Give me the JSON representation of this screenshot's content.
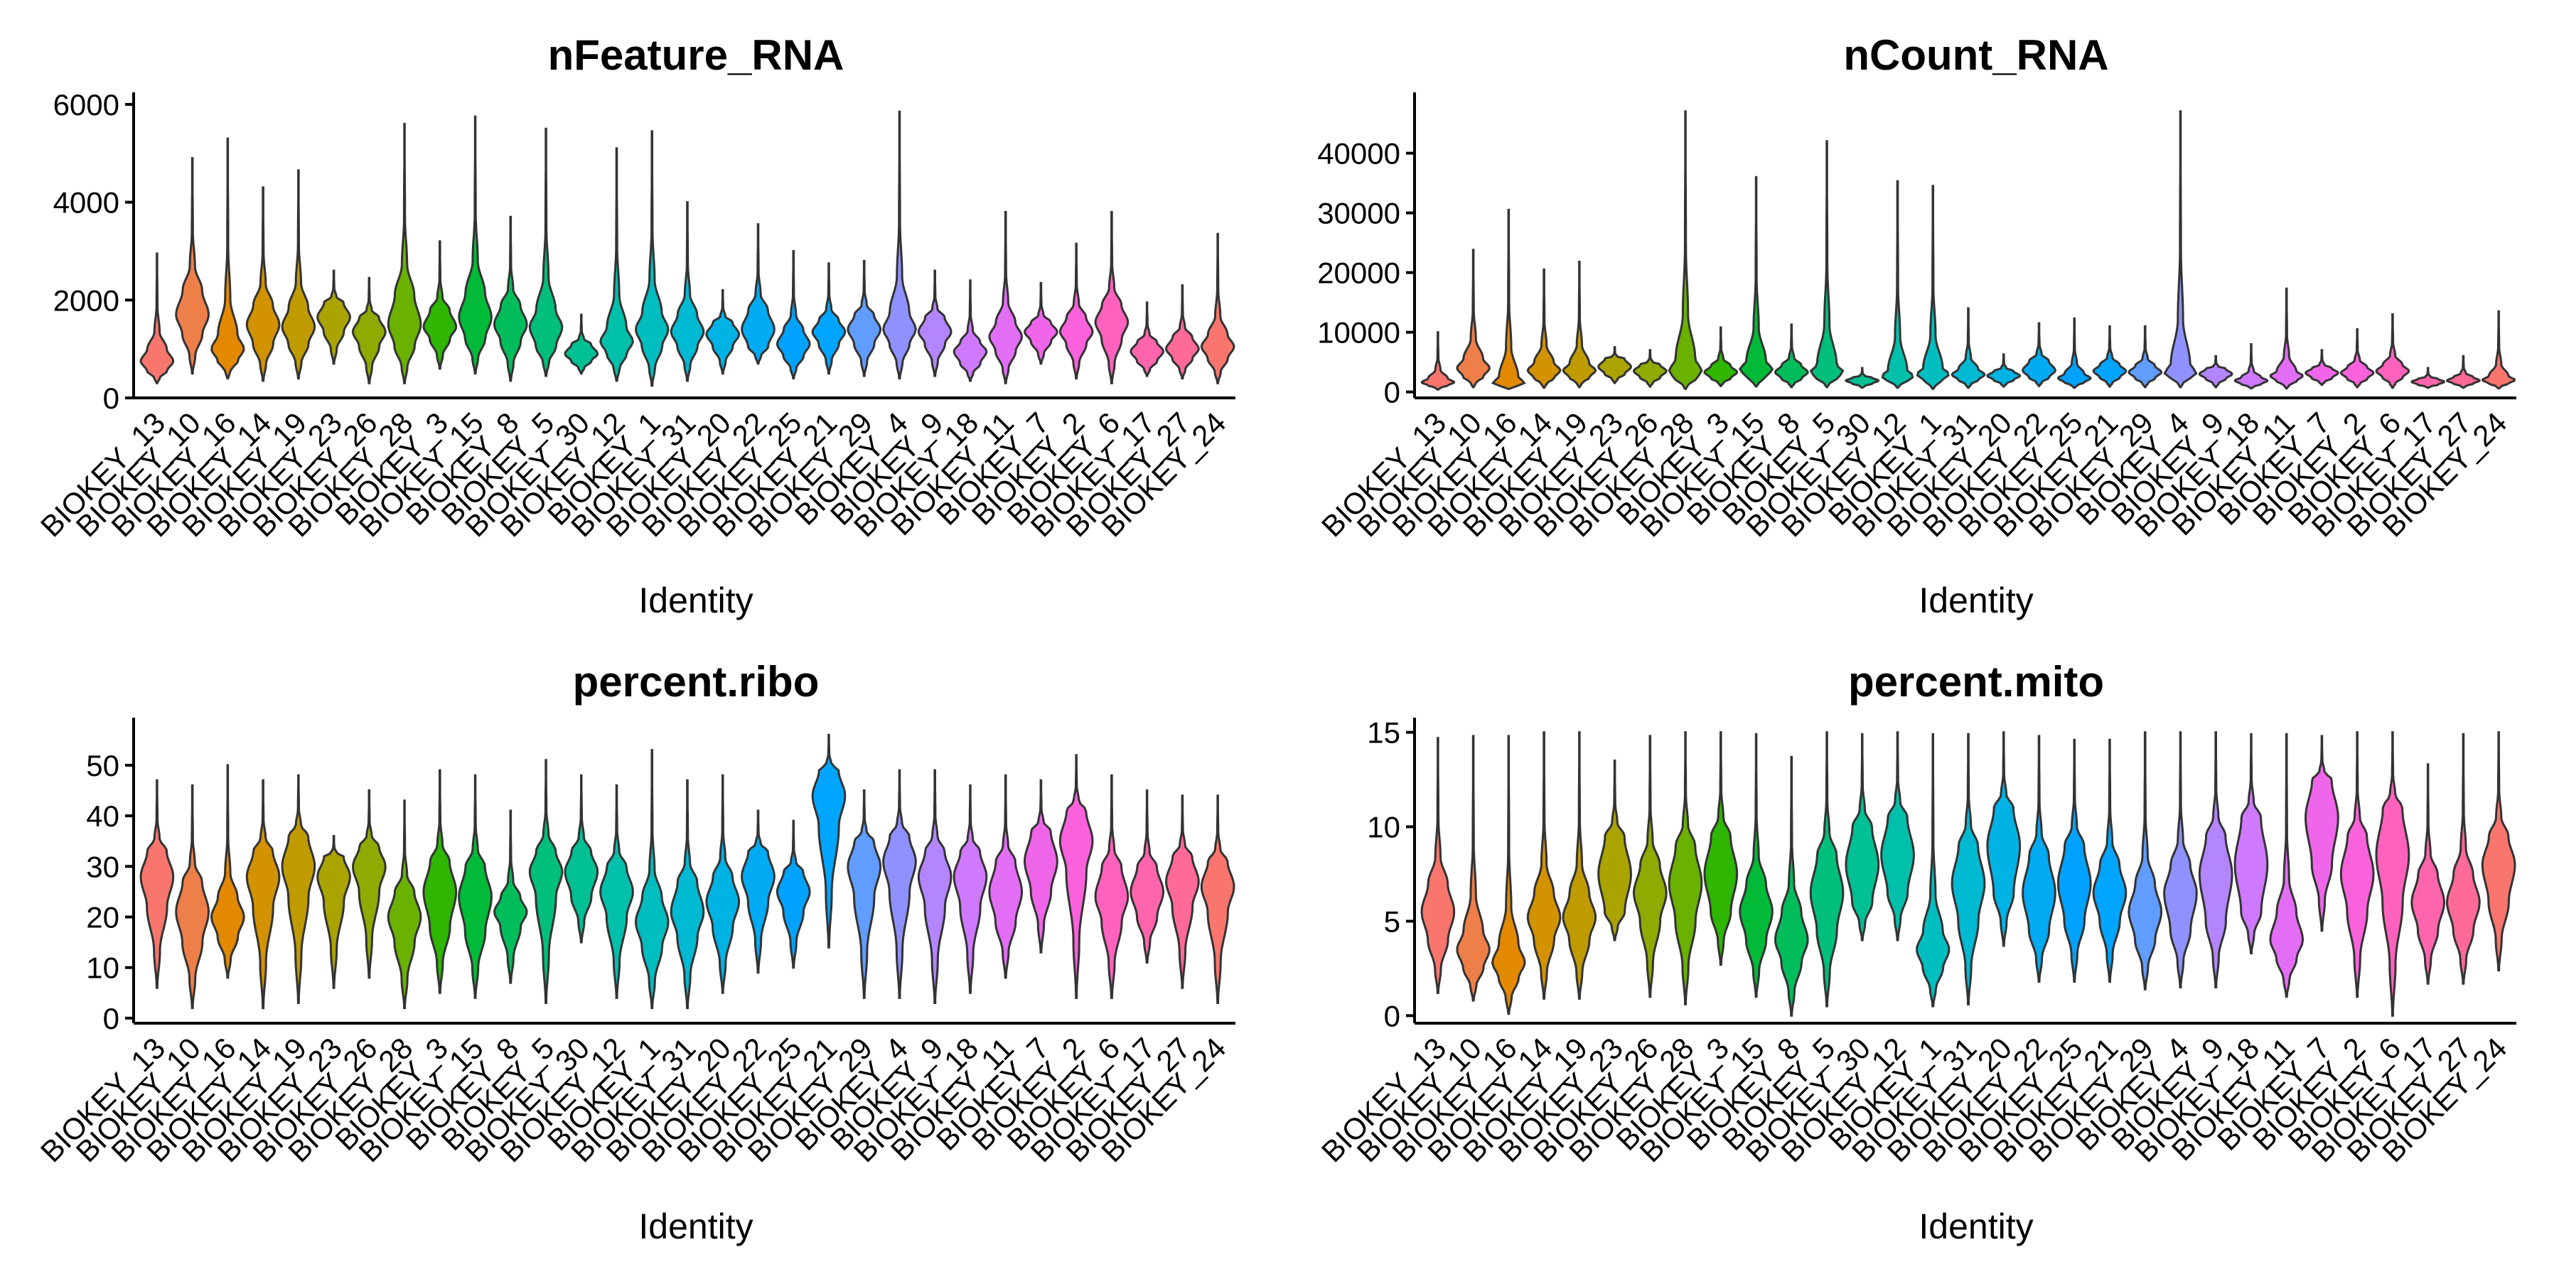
{
  "categories": [
    "BIOKEY_13",
    "BIOKEY_10",
    "BIOKEY_16",
    "BIOKEY_14",
    "BIOKEY_19",
    "BIOKEY_23",
    "BIOKEY_26",
    "BIOKEY_28",
    "BIOKEY_3",
    "BIOKEY_15",
    "BIOKEY_8",
    "BIOKEY_5",
    "BIOKEY_30",
    "BIOKEY_12",
    "BIOKEY_1",
    "BIOKEY_31",
    "BIOKEY_20",
    "BIOKEY_22",
    "BIOKEY_25",
    "BIOKEY_21",
    "BIOKEY_29",
    "BIOKEY_4",
    "BIOKEY_9",
    "BIOKEY_18",
    "BIOKEY_11",
    "BIOKEY_7",
    "BIOKEY_2",
    "BIOKEY_6",
    "BIOKEY_17",
    "BIOKEY_27",
    "BIOKEY_24"
  ],
  "colors": [
    "#F8766D",
    "#EF7F49",
    "#E38900",
    "#D39200",
    "#C09B00",
    "#AAA300",
    "#8FAA00",
    "#6BB100",
    "#2EB600",
    "#00BA38",
    "#00BD5C",
    "#00BF7A",
    "#00C094",
    "#00C0AB",
    "#00BDC0",
    "#00B9D3",
    "#00B3E4",
    "#00ABF3",
    "#00A2FD",
    "#00A5FF",
    "#619CFF",
    "#8F91FF",
    "#B385FF",
    "#CE79FF",
    "#E36EF6",
    "#F066EA",
    "#FA62DB",
    "#FF62BC",
    "#FF65AC",
    "#FF6A98",
    "#F8766D"
  ],
  "chart_data": [
    {
      "type": "violin",
      "title": "nFeature_RNA",
      "xlabel": "Identity",
      "ylabel": "",
      "ylim": [
        0,
        6100
      ],
      "yticks": [
        0,
        2000,
        4000,
        6000
      ],
      "series": [
        {
          "min": 300,
          "q1": 550,
          "median": 750,
          "q3": 1000,
          "max": 2950
        },
        {
          "min": 500,
          "q1": 1300,
          "median": 1700,
          "q3": 2200,
          "max": 4900
        },
        {
          "min": 400,
          "q1": 750,
          "median": 1000,
          "q3": 1300,
          "max": 5300
        },
        {
          "min": 350,
          "q1": 1100,
          "median": 1500,
          "q3": 1900,
          "max": 4300
        },
        {
          "min": 400,
          "q1": 1100,
          "median": 1450,
          "q3": 1850,
          "max": 4650
        },
        {
          "min": 700,
          "q1": 1350,
          "median": 1650,
          "q3": 1950,
          "max": 2600
        },
        {
          "min": 300,
          "q1": 1050,
          "median": 1350,
          "q3": 1650,
          "max": 2450
        },
        {
          "min": 300,
          "q1": 1050,
          "median": 1500,
          "q3": 2100,
          "max": 5600
        },
        {
          "min": 600,
          "q1": 1200,
          "median": 1450,
          "q3": 1800,
          "max": 3200
        },
        {
          "min": 500,
          "q1": 1200,
          "median": 1650,
          "q3": 2150,
          "max": 5750
        },
        {
          "min": 350,
          "q1": 1150,
          "median": 1500,
          "q3": 1900,
          "max": 3700
        },
        {
          "min": 450,
          "q1": 1050,
          "median": 1450,
          "q3": 1800,
          "max": 5500
        },
        {
          "min": 500,
          "q1": 750,
          "median": 900,
          "q3": 1100,
          "max": 1700
        },
        {
          "min": 350,
          "q1": 900,
          "median": 1150,
          "q3": 1450,
          "max": 5100
        },
        {
          "min": 250,
          "q1": 1050,
          "median": 1400,
          "q3": 1750,
          "max": 5450
        },
        {
          "min": 350,
          "q1": 1050,
          "median": 1350,
          "q3": 1700,
          "max": 4000
        },
        {
          "min": 500,
          "q1": 1050,
          "median": 1300,
          "q3": 1550,
          "max": 2200
        },
        {
          "min": 700,
          "q1": 1050,
          "median": 1400,
          "q3": 1800,
          "max": 3550
        },
        {
          "min": 400,
          "q1": 850,
          "median": 1100,
          "q3": 1400,
          "max": 3000
        },
        {
          "min": 500,
          "q1": 1100,
          "median": 1350,
          "q3": 1600,
          "max": 2750
        },
        {
          "min": 450,
          "q1": 1100,
          "median": 1400,
          "q3": 1700,
          "max": 2800
        },
        {
          "min": 400,
          "q1": 1100,
          "median": 1400,
          "q3": 1750,
          "max": 5850
        },
        {
          "min": 450,
          "q1": 1100,
          "median": 1350,
          "q3": 1650,
          "max": 2600
        },
        {
          "min": 350,
          "q1": 700,
          "median": 950,
          "q3": 1150,
          "max": 2400
        },
        {
          "min": 300,
          "q1": 950,
          "median": 1250,
          "q3": 1550,
          "max": 3800
        },
        {
          "min": 700,
          "q1": 1150,
          "median": 1350,
          "q3": 1550,
          "max": 2350
        },
        {
          "min": 400,
          "q1": 1100,
          "median": 1350,
          "q3": 1650,
          "max": 3150
        },
        {
          "min": 300,
          "q1": 1200,
          "median": 1550,
          "q3": 1900,
          "max": 3800
        },
        {
          "min": 450,
          "q1": 750,
          "median": 950,
          "q3": 1150,
          "max": 1950
        },
        {
          "min": 400,
          "q1": 800,
          "median": 1000,
          "q3": 1250,
          "max": 2300
        },
        {
          "min": 300,
          "q1": 800,
          "median": 1050,
          "q3": 1300,
          "max": 3350
        }
      ]
    },
    {
      "type": "violin",
      "title": "nCount_RNA",
      "xlabel": "Identity",
      "ylabel": "",
      "ylim": [
        -1000,
        49000
      ],
      "yticks": [
        0,
        10000,
        20000,
        30000,
        40000
      ],
      "series": [
        {
          "min": 400,
          "q1": 1100,
          "median": 1600,
          "q3": 2300,
          "max": 10000
        },
        {
          "min": 800,
          "q1": 2500,
          "median": 4000,
          "q3": 5600,
          "max": 23800
        },
        {
          "min": 500,
          "q1": 1100,
          "median": 1600,
          "q3": 2400,
          "max": 30500
        },
        {
          "min": 700,
          "q1": 2300,
          "median": 3600,
          "q3": 5000,
          "max": 20500
        },
        {
          "min": 800,
          "q1": 2400,
          "median": 3600,
          "q3": 4800,
          "max": 21800
        },
        {
          "min": 1500,
          "q1": 3000,
          "median": 4200,
          "q3": 5600,
          "max": 7500
        },
        {
          "min": 900,
          "q1": 2400,
          "median": 3500,
          "q3": 4600,
          "max": 7000
        },
        {
          "min": 500,
          "q1": 2000,
          "median": 3500,
          "q3": 5600,
          "max": 47000
        },
        {
          "min": 1000,
          "q1": 2300,
          "median": 3300,
          "q3": 4400,
          "max": 10800
        },
        {
          "min": 900,
          "q1": 2500,
          "median": 3800,
          "q3": 5200,
          "max": 36000
        },
        {
          "min": 800,
          "q1": 2200,
          "median": 3300,
          "q3": 4500,
          "max": 11300
        },
        {
          "min": 800,
          "q1": 2200,
          "median": 3400,
          "q3": 4600,
          "max": 42000
        },
        {
          "min": 700,
          "q1": 1400,
          "median": 1900,
          "q3": 2400,
          "max": 4000
        },
        {
          "min": 700,
          "q1": 1800,
          "median": 2700,
          "q3": 3500,
          "max": 35300
        },
        {
          "min": 500,
          "q1": 2000,
          "median": 3000,
          "q3": 4000,
          "max": 34500
        },
        {
          "min": 700,
          "q1": 2000,
          "median": 2900,
          "q3": 3900,
          "max": 14000
        },
        {
          "min": 900,
          "q1": 2000,
          "median": 2700,
          "q3": 3500,
          "max": 6300
        },
        {
          "min": 1000,
          "q1": 2400,
          "median": 3600,
          "q3": 5200,
          "max": 11500
        },
        {
          "min": 700,
          "q1": 1600,
          "median": 2300,
          "q3": 3100,
          "max": 12300
        },
        {
          "min": 900,
          "q1": 2400,
          "median": 3500,
          "q3": 4600,
          "max": 11000
        },
        {
          "min": 800,
          "q1": 2300,
          "median": 3300,
          "q3": 4400,
          "max": 11000
        },
        {
          "min": 800,
          "q1": 2300,
          "median": 3300,
          "q3": 4500,
          "max": 47000
        },
        {
          "min": 800,
          "q1": 2200,
          "median": 3000,
          "q3": 3900,
          "max": 6000
        },
        {
          "min": 600,
          "q1": 1300,
          "median": 1900,
          "q3": 2500,
          "max": 8000
        },
        {
          "min": 600,
          "q1": 1800,
          "median": 2700,
          "q3": 3500,
          "max": 17300
        },
        {
          "min": 1200,
          "q1": 2300,
          "median": 3200,
          "q3": 4000,
          "max": 7000
        },
        {
          "min": 800,
          "q1": 2200,
          "median": 3200,
          "q3": 4200,
          "max": 10500
        },
        {
          "min": 700,
          "q1": 2400,
          "median": 3500,
          "q3": 4600,
          "max": 13000
        },
        {
          "min": 700,
          "q1": 1200,
          "median": 1700,
          "q3": 2200,
          "max": 4000
        },
        {
          "min": 700,
          "q1": 1400,
          "median": 1900,
          "q3": 2500,
          "max": 6000
        },
        {
          "min": 600,
          "q1": 1400,
          "median": 2000,
          "q3": 2700,
          "max": 13500
        }
      ]
    },
    {
      "type": "violin",
      "title": "percent.ribo",
      "xlabel": "Identity",
      "ylabel": "",
      "ylim": [
        -1,
        58
      ],
      "yticks": [
        0,
        10,
        20,
        30,
        40,
        50
      ],
      "series": [
        {
          "min": 6,
          "q1": 22,
          "median": 28,
          "q3": 33,
          "max": 47
        },
        {
          "min": 2,
          "q1": 15,
          "median": 21,
          "q3": 27,
          "max": 46
        },
        {
          "min": 8,
          "q1": 16,
          "median": 20,
          "q3": 24,
          "max": 50
        },
        {
          "min": 2,
          "q1": 22,
          "median": 28,
          "q3": 33,
          "max": 47
        },
        {
          "min": 3,
          "q1": 24,
          "median": 30,
          "q3": 36,
          "max": 48
        },
        {
          "min": 6,
          "q1": 23,
          "median": 28,
          "q3": 32,
          "max": 36
        },
        {
          "min": 8,
          "q1": 25,
          "median": 30,
          "q3": 34,
          "max": 45
        },
        {
          "min": 2,
          "q1": 15,
          "median": 20,
          "q3": 25,
          "max": 43
        },
        {
          "min": 5,
          "q1": 18,
          "median": 25,
          "q3": 31,
          "max": 49
        },
        {
          "min": 4,
          "q1": 17,
          "median": 24,
          "q3": 30,
          "max": 48
        },
        {
          "min": 7,
          "q1": 18,
          "median": 21,
          "q3": 24,
          "max": 41
        },
        {
          "min": 3,
          "q1": 24,
          "median": 29,
          "q3": 33,
          "max": 51
        },
        {
          "min": 15,
          "q1": 24,
          "median": 29,
          "q3": 33,
          "max": 48
        },
        {
          "min": 4,
          "q1": 20,
          "median": 25,
          "q3": 30,
          "max": 46
        },
        {
          "min": 2,
          "q1": 14,
          "median": 19,
          "q3": 24,
          "max": 53
        },
        {
          "min": 2,
          "q1": 16,
          "median": 21,
          "q3": 27,
          "max": 47
        },
        {
          "min": 5,
          "q1": 18,
          "median": 23,
          "q3": 28,
          "max": 48
        },
        {
          "min": 9,
          "q1": 23,
          "median": 28,
          "q3": 33,
          "max": 41
        },
        {
          "min": 10,
          "q1": 21,
          "median": 25,
          "q3": 29,
          "max": 39
        },
        {
          "min": 14,
          "q1": 38,
          "median": 44,
          "q3": 49,
          "max": 56
        },
        {
          "min": 4,
          "q1": 24,
          "median": 30,
          "q3": 35,
          "max": 45
        },
        {
          "min": 4,
          "q1": 25,
          "median": 31,
          "q3": 36,
          "max": 49
        },
        {
          "min": 3,
          "q1": 22,
          "median": 28,
          "q3": 33,
          "max": 49
        },
        {
          "min": 5,
          "q1": 22,
          "median": 28,
          "q3": 33,
          "max": 46
        },
        {
          "min": 8,
          "q1": 19,
          "median": 25,
          "q3": 31,
          "max": 48
        },
        {
          "min": 13,
          "q1": 25,
          "median": 31,
          "q3": 37,
          "max": 47
        },
        {
          "min": 4,
          "q1": 29,
          "median": 35,
          "q3": 41,
          "max": 52
        },
        {
          "min": 4,
          "q1": 19,
          "median": 24,
          "q3": 30,
          "max": 48
        },
        {
          "min": 11,
          "q1": 20,
          "median": 25,
          "q3": 30,
          "max": 45
        },
        {
          "min": 6,
          "q1": 22,
          "median": 27,
          "q3": 32,
          "max": 44
        },
        {
          "min": 3,
          "q1": 21,
          "median": 26,
          "q3": 31,
          "max": 44
        }
      ]
    },
    {
      "type": "violin",
      "title": "percent.mito",
      "xlabel": "Identity",
      "ylabel": "",
      "ylim": [
        -0.4,
        15.4
      ],
      "yticks": [
        0,
        5,
        10,
        15
      ],
      "series": [
        {
          "min": 1.2,
          "q1": 4.0,
          "median": 5.5,
          "q3": 7.0,
          "max": 14.7
        },
        {
          "min": 0.8,
          "q1": 2.5,
          "median": 3.5,
          "q3": 4.5,
          "max": 14.8
        },
        {
          "min": 0.1,
          "q1": 2.0,
          "median": 2.8,
          "q3": 3.8,
          "max": 14.8
        },
        {
          "min": 0.9,
          "q1": 4.0,
          "median": 5.2,
          "q3": 6.5,
          "max": 15.0
        },
        {
          "min": 0.9,
          "q1": 4.0,
          "median": 5.2,
          "q3": 6.5,
          "max": 15.0
        },
        {
          "min": 4.0,
          "q1": 5.5,
          "median": 7.5,
          "q3": 9.5,
          "max": 13.5
        },
        {
          "min": 1.0,
          "q1": 5.0,
          "median": 6.5,
          "q3": 8.0,
          "max": 14.8
        },
        {
          "min": 0.6,
          "q1": 5.0,
          "median": 7.0,
          "q3": 9.0,
          "max": 15.0
        },
        {
          "min": 2.7,
          "q1": 5.5,
          "median": 7.5,
          "q3": 9.5,
          "max": 15.0
        },
        {
          "min": 1.0,
          "q1": 4.0,
          "median": 5.5,
          "q3": 7.0,
          "max": 14.9
        },
        {
          "min": 0.0,
          "q1": 2.8,
          "median": 4.0,
          "q3": 5.5,
          "max": 13.7
        },
        {
          "min": 0.5,
          "q1": 4.5,
          "median": 6.5,
          "q3": 8.5,
          "max": 15.0
        },
        {
          "min": 4.0,
          "q1": 6.0,
          "median": 8.0,
          "q3": 10.0,
          "max": 14.9
        },
        {
          "min": 4.0,
          "q1": 6.5,
          "median": 8.5,
          "q3": 10.5,
          "max": 15.0
        },
        {
          "min": 0.5,
          "q1": 2.5,
          "median": 3.5,
          "q3": 4.5,
          "max": 14.9
        },
        {
          "min": 0.6,
          "q1": 5.0,
          "median": 7.0,
          "q3": 9.0,
          "max": 14.9
        },
        {
          "min": 3.7,
          "q1": 6.5,
          "median": 9.0,
          "q3": 11.0,
          "max": 15.0
        },
        {
          "min": 1.8,
          "q1": 4.5,
          "median": 6.5,
          "q3": 8.5,
          "max": 14.8
        },
        {
          "min": 1.8,
          "q1": 5.0,
          "median": 7.0,
          "q3": 9.0,
          "max": 14.6
        },
        {
          "min": 1.8,
          "q1": 5.0,
          "median": 6.5,
          "q3": 8.0,
          "max": 14.6
        },
        {
          "min": 1.4,
          "q1": 4.0,
          "median": 5.5,
          "q3": 7.0,
          "max": 15.0
        },
        {
          "min": 1.5,
          "q1": 4.5,
          "median": 6.5,
          "q3": 8.0,
          "max": 15.0
        },
        {
          "min": 1.5,
          "q1": 5.0,
          "median": 7.5,
          "q3": 9.5,
          "max": 15.0
        },
        {
          "min": 3.3,
          "q1": 5.5,
          "median": 8.0,
          "q3": 10.5,
          "max": 14.9
        },
        {
          "min": 1.0,
          "q1": 3.0,
          "median": 4.0,
          "q3": 5.5,
          "max": 14.9
        },
        {
          "min": 4.5,
          "q1": 8.0,
          "median": 10.5,
          "q3": 12.5,
          "max": 14.8
        },
        {
          "min": 1.0,
          "q1": 5.5,
          "median": 7.5,
          "q3": 9.5,
          "max": 15.0
        },
        {
          "min": 0.0,
          "q1": 6.0,
          "median": 8.5,
          "q3": 11.0,
          "max": 15.0
        },
        {
          "min": 1.7,
          "q1": 4.5,
          "median": 6.0,
          "q3": 7.5,
          "max": 13.3
        },
        {
          "min": 1.7,
          "q1": 4.5,
          "median": 6.0,
          "q3": 7.5,
          "max": 14.9
        },
        {
          "min": 2.4,
          "q1": 6.0,
          "median": 8.0,
          "q3": 9.5,
          "max": 15.0
        }
      ]
    }
  ]
}
